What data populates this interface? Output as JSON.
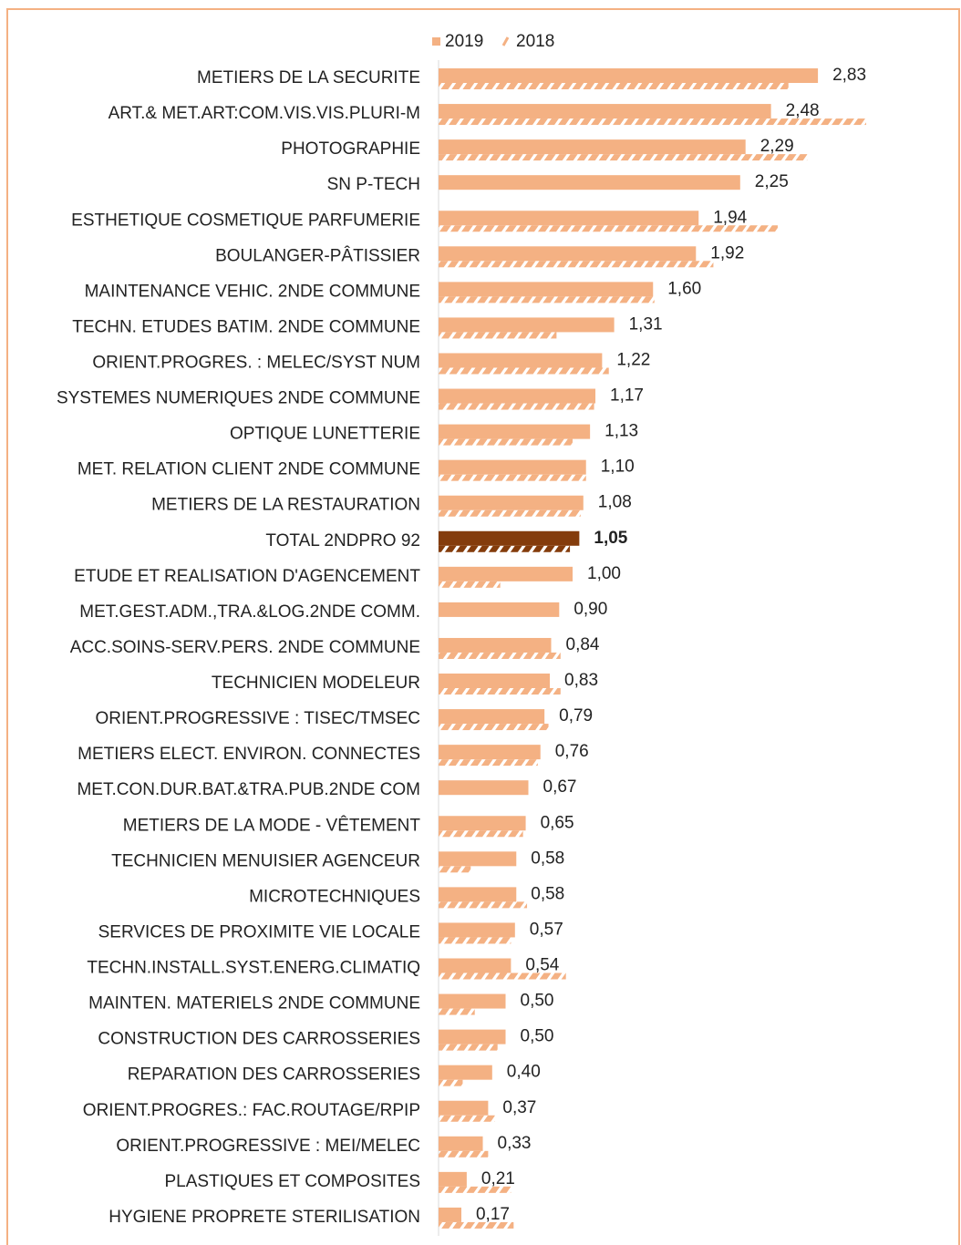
{
  "chart_data": {
    "type": "hbar",
    "categories": [
      "METIERS DE LA SECURITE",
      "ART.& MET.ART:COM.VIS.VIS.PLURI-M",
      "PHOTOGRAPHIE",
      "SN P-TECH",
      "ESTHETIQUE COSMETIQUE PARFUMERIE",
      "BOULANGER-PÂTISSIER",
      "MAINTENANCE VEHIC. 2NDE COMMUNE",
      "TECHN. ETUDES BATIM. 2NDE COMMUNE",
      "ORIENT.PROGRES. : MELEC/SYST NUM",
      "SYSTEMES NUMERIQUES 2NDE COMMUNE",
      "OPTIQUE LUNETTERIE",
      "MET. RELATION CLIENT 2NDE COMMUNE",
      "METIERS DE LA RESTAURATION",
      "TOTAL 2NDPRO 92",
      "ETUDE ET REALISATION D'AGENCEMENT",
      "MET.GEST.ADM.,TRA.&LOG.2NDE COMM.",
      "ACC.SOINS-SERV.PERS. 2NDE COMMUNE",
      "TECHNICIEN MODELEUR",
      "ORIENT.PROGRESSIVE : TISEC/TMSEC",
      "METIERS ELECT. ENVIRON. CONNECTES",
      "MET.CON.DUR.BAT.&TRA.PUB.2NDE COM",
      "METIERS DE LA MODE - VÊTEMENT",
      "TECHNICIEN MENUISIER AGENCEUR",
      "MICROTECHNIQUES",
      "SERVICES DE PROXIMITE VIE LOCALE",
      "TECHN.INSTALL.SYST.ENERG.CLIMATIQ",
      "MAINTEN. MATERIELS 2NDE COMMUNE",
      "CONSTRUCTION DES CARROSSERIES",
      "REPARATION DES CARROSSERIES",
      "ORIENT.PROGRES.: FAC.ROUTAGE/RPIP",
      "ORIENT.PROGRESSIVE : MEI/MELEC",
      "PLASTIQUES ET COMPOSITES",
      "HYGIENE PROPRETE STERILISATION"
    ],
    "series": [
      {
        "name": "2019",
        "color": "#f4b183",
        "pattern": "solid",
        "values": [
          2.83,
          2.48,
          2.29,
          2.25,
          1.94,
          1.92,
          1.6,
          1.31,
          1.22,
          1.17,
          1.13,
          1.1,
          1.08,
          1.05,
          1.0,
          0.9,
          0.84,
          0.83,
          0.79,
          0.76,
          0.67,
          0.65,
          0.58,
          0.58,
          0.57,
          0.54,
          0.5,
          0.5,
          0.4,
          0.37,
          0.33,
          0.21,
          0.17
        ],
        "value_labels": [
          "2,83",
          "2,48",
          "2,29",
          "2,25",
          "1,94",
          "1,92",
          "1,60",
          "1,31",
          "1,22",
          "1,17",
          "1,13",
          "1,10",
          "1,08",
          "1,05",
          "1,00",
          "0,90",
          "0,84",
          "0,83",
          "0,79",
          "0,76",
          "0,67",
          "0,65",
          "0,58",
          "0,58",
          "0,57",
          "0,54",
          "0,50",
          "0,50",
          "0,40",
          "0,37",
          "0,33",
          "0,21",
          "0,17"
        ]
      },
      {
        "name": "2018",
        "color": "#f4b183",
        "pattern": "hatch",
        "values": [
          2.61,
          3.19,
          2.75,
          null,
          2.53,
          2.05,
          1.61,
          0.88,
          1.27,
          1.16,
          1.0,
          1.1,
          1.06,
          0.98,
          0.46,
          null,
          0.91,
          0.91,
          0.82,
          0.74,
          null,
          0.63,
          0.24,
          0.66,
          0.54,
          0.95,
          0.27,
          0.44,
          0.18,
          0.42,
          0.37,
          0.54,
          0.56
        ]
      }
    ],
    "highlight": {
      "index": 13,
      "color": "#843c0c"
    },
    "xlim": [
      0,
      3.7
    ],
    "legend": "top"
  }
}
